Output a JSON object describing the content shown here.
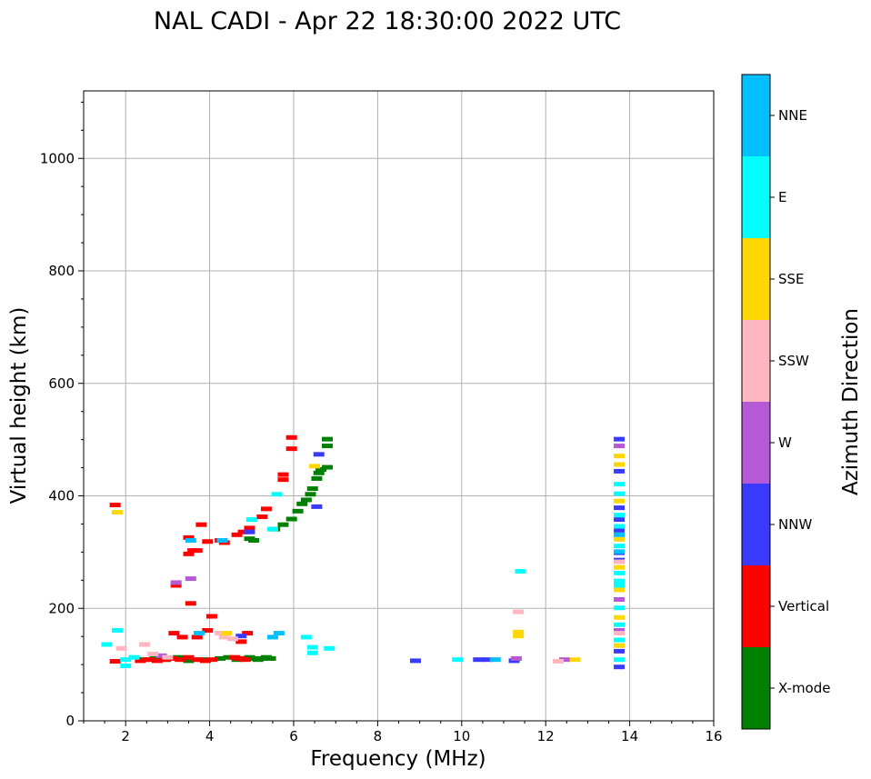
{
  "chart_data": {
    "type": "scatter",
    "title": "NAL CADI - Apr 22 18:30:00 2022 UTC",
    "xlabel": "Frequency (MHz)",
    "ylabel": "Virtual height (km)",
    "xlim": [
      1,
      16
    ],
    "ylim": [
      0,
      1120
    ],
    "xticks": [
      2,
      4,
      6,
      8,
      10,
      12,
      14,
      16
    ],
    "yticks": [
      0,
      200,
      400,
      600,
      800,
      1000
    ],
    "grid": true,
    "colorbar": {
      "label": "Azimuth Direction",
      "categories": [
        {
          "name": "X-mode",
          "color": "#008000"
        },
        {
          "name": "Vertical",
          "color": "#ff0000"
        },
        {
          "name": "NNW",
          "color": "#3a3aff"
        },
        {
          "name": "W",
          "color": "#b559d6"
        },
        {
          "name": "SSW",
          "color": "#ffb6c1"
        },
        {
          "name": "SSE",
          "color": "#ffd700"
        },
        {
          "name": "E",
          "color": "#00ffff"
        },
        {
          "name": "NNE",
          "color": "#00bfff"
        }
      ]
    },
    "series": [
      {
        "name": "X-mode",
        "points": [
          [
            2.45,
            108
          ],
          [
            2.7,
            110
          ],
          [
            2.95,
            108
          ],
          [
            3.25,
            112
          ],
          [
            3.5,
            106
          ],
          [
            3.8,
            108
          ],
          [
            4.25,
            110
          ],
          [
            4.45,
            112
          ],
          [
            4.65,
            108
          ],
          [
            4.85,
            110
          ],
          [
            4.95,
            112
          ],
          [
            5.05,
            110
          ],
          [
            5.15,
            108
          ],
          [
            5.25,
            110
          ],
          [
            5.35,
            112
          ],
          [
            5.45,
            110
          ],
          [
            4.95,
            323
          ],
          [
            5.05,
            320
          ],
          [
            5.55,
            340
          ],
          [
            5.75,
            348
          ],
          [
            5.95,
            358
          ],
          [
            6.1,
            372
          ],
          [
            6.2,
            385
          ],
          [
            6.3,
            392
          ],
          [
            6.4,
            402
          ],
          [
            6.45,
            412
          ],
          [
            6.55,
            430
          ],
          [
            6.6,
            440
          ],
          [
            6.65,
            446
          ],
          [
            6.8,
            450
          ],
          [
            6.8,
            488
          ],
          [
            6.8,
            500
          ]
        ]
      },
      {
        "name": "Vertical",
        "points": [
          [
            1.75,
            383
          ],
          [
            1.75,
            105
          ],
          [
            2.35,
            106
          ],
          [
            2.55,
            108
          ],
          [
            2.75,
            106
          ],
          [
            2.95,
            108
          ],
          [
            3.1,
            110
          ],
          [
            3.3,
            108
          ],
          [
            3.5,
            112
          ],
          [
            3.7,
            108
          ],
          [
            3.9,
            106
          ],
          [
            4.05,
            108
          ],
          [
            4.6,
            112
          ],
          [
            4.7,
            110
          ],
          [
            4.85,
            108
          ],
          [
            3.15,
            155
          ],
          [
            3.35,
            148
          ],
          [
            3.7,
            148
          ],
          [
            3.95,
            160
          ],
          [
            4.05,
            185
          ],
          [
            3.55,
            208
          ],
          [
            3.2,
            240
          ],
          [
            3.5,
            296
          ],
          [
            3.6,
            302
          ],
          [
            3.7,
            302
          ],
          [
            3.8,
            348
          ],
          [
            3.95,
            318
          ],
          [
            3.5,
            325
          ],
          [
            4.25,
            320
          ],
          [
            4.35,
            316
          ],
          [
            4.65,
            330
          ],
          [
            4.8,
            335
          ],
          [
            4.95,
            342
          ],
          [
            5.25,
            362
          ],
          [
            5.35,
            376
          ],
          [
            5.75,
            428
          ],
          [
            5.75,
            437
          ],
          [
            5.95,
            483
          ],
          [
            5.95,
            503
          ],
          [
            4.9,
            155
          ],
          [
            4.75,
            140
          ]
        ]
      },
      {
        "name": "NNW",
        "points": [
          [
            8.9,
            106
          ],
          [
            10.4,
            108
          ],
          [
            10.6,
            108
          ],
          [
            11.25,
            106
          ],
          [
            4.75,
            150
          ],
          [
            4.95,
            335
          ],
          [
            6.6,
            473
          ],
          [
            6.55,
            380
          ],
          [
            13.75,
            95
          ],
          [
            13.75,
            123
          ],
          [
            13.75,
            285
          ],
          [
            13.75,
            298
          ],
          [
            13.75,
            338
          ],
          [
            13.75,
            357
          ],
          [
            13.75,
            378
          ],
          [
            13.75,
            443
          ],
          [
            13.75,
            500
          ]
        ]
      },
      {
        "name": "W",
        "points": [
          [
            3.2,
            245
          ],
          [
            3.55,
            252
          ],
          [
            2.85,
            115
          ],
          [
            11.3,
            110
          ],
          [
            12.45,
            108
          ],
          [
            13.75,
            160
          ],
          [
            13.75,
            215
          ],
          [
            13.75,
            488
          ]
        ]
      },
      {
        "name": "SSW",
        "points": [
          [
            1.9,
            128
          ],
          [
            2.45,
            135
          ],
          [
            2.65,
            118
          ],
          [
            3.0,
            112
          ],
          [
            4.25,
            155
          ],
          [
            4.35,
            148
          ],
          [
            4.55,
            145
          ],
          [
            11.35,
            193
          ],
          [
            12.3,
            105
          ],
          [
            13.75,
            155
          ],
          [
            13.75,
            282
          ]
        ]
      },
      {
        "name": "SSE",
        "points": [
          [
            1.8,
            370
          ],
          [
            4.4,
            155
          ],
          [
            6.5,
            452
          ],
          [
            11.35,
            150
          ],
          [
            11.35,
            157
          ],
          [
            12.7,
            108
          ],
          [
            13.75,
            133
          ],
          [
            13.75,
            183
          ],
          [
            13.75,
            232
          ],
          [
            13.75,
            272
          ],
          [
            13.75,
            322
          ],
          [
            13.75,
            390
          ],
          [
            13.75,
            455
          ],
          [
            13.75,
            470
          ]
        ]
      },
      {
        "name": "E",
        "points": [
          [
            1.55,
            135
          ],
          [
            1.8,
            160
          ],
          [
            2.0,
            108
          ],
          [
            2.0,
            97
          ],
          [
            2.2,
            112
          ],
          [
            5.6,
            402
          ],
          [
            5.0,
            357
          ],
          [
            5.5,
            340
          ],
          [
            6.3,
            148
          ],
          [
            6.45,
            120
          ],
          [
            6.45,
            130
          ],
          [
            6.85,
            128
          ],
          [
            9.9,
            108
          ],
          [
            11.4,
            265
          ],
          [
            13.75,
            108
          ],
          [
            13.75,
            143
          ],
          [
            13.75,
            170
          ],
          [
            13.75,
            200
          ],
          [
            13.75,
            240
          ],
          [
            13.75,
            248
          ],
          [
            13.75,
            262
          ],
          [
            13.75,
            310
          ],
          [
            13.75,
            345
          ],
          [
            13.75,
            365
          ],
          [
            13.75,
            403
          ],
          [
            13.75,
            420
          ]
        ]
      },
      {
        "name": "NNE",
        "points": [
          [
            3.75,
            155
          ],
          [
            3.55,
            320
          ],
          [
            5.5,
            148
          ],
          [
            5.65,
            155
          ],
          [
            10.8,
            108
          ],
          [
            4.3,
            320
          ],
          [
            13.75,
            300
          ],
          [
            13.75,
            330
          ]
        ]
      }
    ]
  }
}
